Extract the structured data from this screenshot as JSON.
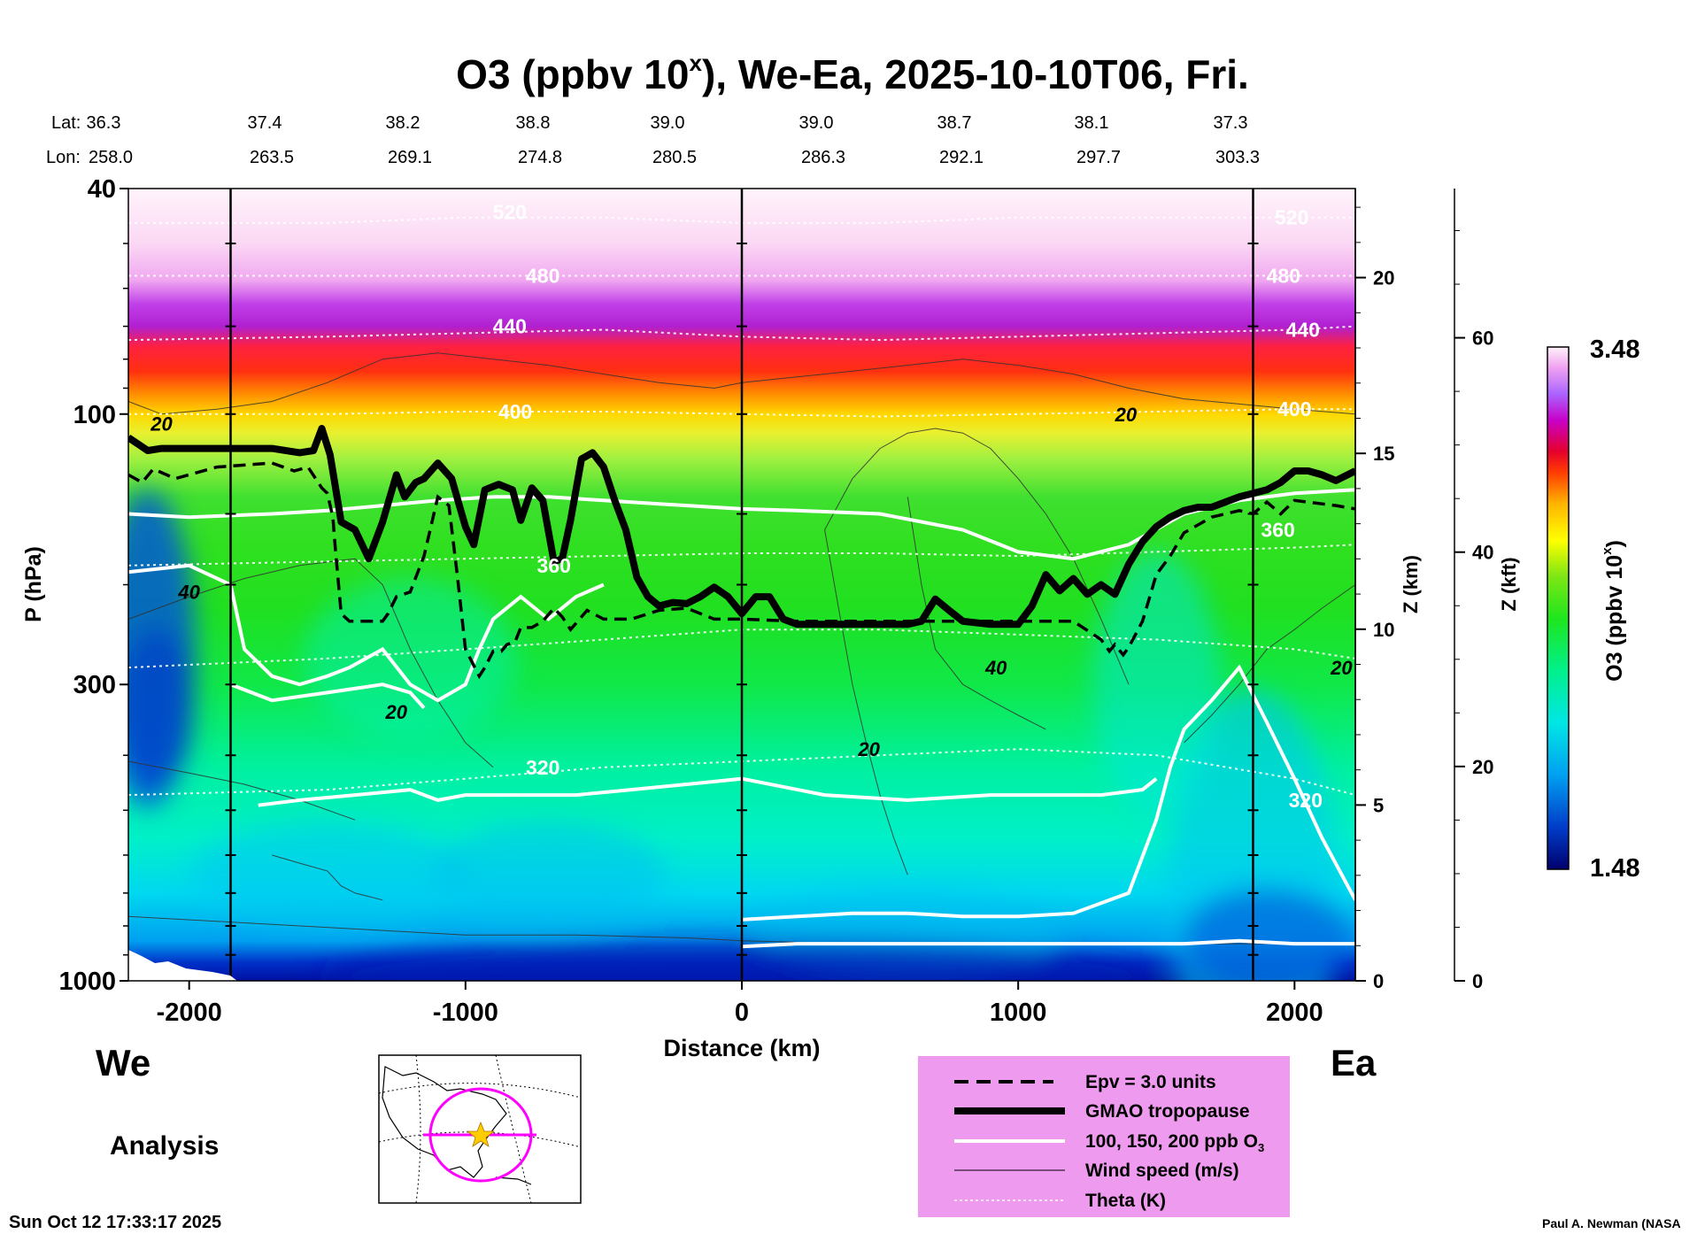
{
  "chart_data": {
    "type": "heatmap",
    "title_prefix": "O3 (ppbv 10",
    "title_sup": "x",
    "title_suffix": "), We-Ea, 2025-10-10T06, Fri.",
    "lat_label": "Lat:",
    "lon_label": "Lon:",
    "lat_values": [
      "36.3",
      "37.4",
      "38.2",
      "38.8",
      "39.0",
      "39.0",
      "38.7",
      "38.1",
      "37.3"
    ],
    "lon_values": [
      "258.0",
      "263.5",
      "269.1",
      "274.8",
      "280.5",
      "286.3",
      "292.1",
      "297.7",
      "303.3"
    ],
    "x_axis": {
      "label": "Distance (km)",
      "range": [
        -2220,
        2220
      ],
      "ticks": [
        -2000,
        -1000,
        0,
        1000,
        2000
      ],
      "tick_labels": [
        "-2000",
        "-1000",
        "0",
        "1000",
        "2000"
      ],
      "vertical_lines_km": [
        -1850,
        0,
        1850
      ]
    },
    "y_axis": {
      "label": "P (hPa)",
      "scale": "log",
      "range": [
        1000,
        40
      ],
      "ticks": [
        1000,
        300,
        100,
        40
      ],
      "tick_labels": [
        "1000",
        "300",
        "100",
        "40"
      ]
    },
    "z_km_axis": {
      "label": "Z (km)",
      "ticks": [
        0,
        5,
        10,
        15,
        20
      ],
      "tick_labels": [
        "0",
        "5",
        "10",
        "15",
        "20"
      ]
    },
    "z_kft_axis": {
      "label": "Z (kft)",
      "ticks": [
        0,
        20,
        40,
        60
      ],
      "tick_labels": [
        "0",
        "20",
        "40",
        "60"
      ]
    },
    "colorbar": {
      "label_prefix": "O3 (ppbv 10",
      "label_sup": "x",
      "label_suffix": ")",
      "min_label": "1.48",
      "max_label": "3.48",
      "min": 1.48,
      "max": 3.48
    },
    "theta_labels": [
      {
        "text": "520",
        "x_km": -840,
        "p_hpa": 44
      },
      {
        "text": "480",
        "x_km": -720,
        "p_hpa": 57
      },
      {
        "text": "440",
        "x_km": -840,
        "p_hpa": 70
      },
      {
        "text": "400",
        "x_km": -820,
        "p_hpa": 99
      },
      {
        "text": "360",
        "x_km": -680,
        "p_hpa": 185
      },
      {
        "text": "320",
        "x_km": -720,
        "p_hpa": 420
      },
      {
        "text": "520",
        "x_km": 1990,
        "p_hpa": 45
      },
      {
        "text": "480",
        "x_km": 1960,
        "p_hpa": 57
      },
      {
        "text": "440",
        "x_km": 2030,
        "p_hpa": 71
      },
      {
        "text": "400",
        "x_km": 2000,
        "p_hpa": 98
      },
      {
        "text": "360",
        "x_km": 1940,
        "p_hpa": 160
      },
      {
        "text": "320",
        "x_km": 2040,
        "p_hpa": 480
      }
    ],
    "wind_labels": [
      {
        "text": "20",
        "x_km": -2100,
        "p_hpa": 104
      },
      {
        "text": "40",
        "x_km": -2000,
        "p_hpa": 206
      },
      {
        "text": "20",
        "x_km": -1250,
        "p_hpa": 335
      },
      {
        "text": "20",
        "x_km": 1390,
        "p_hpa": 100
      },
      {
        "text": "40",
        "x_km": 920,
        "p_hpa": 280
      },
      {
        "text": "20",
        "x_km": 460,
        "p_hpa": 390
      },
      {
        "text": "20",
        "x_km": 2170,
        "p_hpa": 280
      }
    ],
    "tropopause": {
      "x_km": [
        -2220,
        -2150,
        -2100,
        -1900,
        -1700,
        -1600,
        -1550,
        -1520,
        -1490,
        -1450,
        -1400,
        -1350,
        -1300,
        -1250,
        -1220,
        -1180,
        -1150,
        -1100,
        -1050,
        -1000,
        -970,
        -930,
        -880,
        -830,
        -800,
        -760,
        -720,
        -680,
        -650,
        -620,
        -580,
        -540,
        -500,
        -460,
        -420,
        -380,
        -340,
        -300,
        -250,
        -200,
        -150,
        -100,
        -50,
        0,
        50,
        100,
        150,
        200,
        300,
        400,
        500,
        600,
        650,
        700,
        750,
        800,
        900,
        1000,
        1050,
        1100,
        1150,
        1200,
        1250,
        1300,
        1350,
        1400,
        1450,
        1500,
        1550,
        1600,
        1650,
        1700,
        1800,
        1900,
        1950,
        2000,
        2050,
        2100,
        2150,
        2220
      ],
      "p_hpa": [
        110,
        116,
        115,
        115,
        115,
        117,
        116,
        106,
        118,
        155,
        160,
        180,
        155,
        128,
        140,
        132,
        130,
        122,
        130,
        158,
        170,
        136,
        133,
        136,
        154,
        135,
        142,
        182,
        180,
        154,
        120,
        117,
        124,
        142,
        160,
        194,
        210,
        218,
        215,
        216,
        210,
        202,
        210,
        225,
        210,
        210,
        230,
        235,
        235,
        235,
        235,
        235,
        232,
        212,
        222,
        232,
        235,
        235,
        218,
        192,
        205,
        195,
        208,
        200,
        208,
        184,
        168,
        158,
        152,
        148,
        146,
        146,
        140,
        136,
        132,
        126,
        126,
        128,
        131,
        126
      ],
      "label": "GMAO tropopause"
    },
    "epv_3": {
      "x_km": [
        -2220,
        -2170,
        -2130,
        -2050,
        -1900,
        -1700,
        -1620,
        -1570,
        -1520,
        -1500,
        -1480,
        -1470,
        -1450,
        -1420,
        -1400,
        -1350,
        -1300,
        -1280,
        -1250,
        -1200,
        -1150,
        -1100,
        -1060,
        -1030,
        -1000,
        -950,
        -930,
        -900,
        -870,
        -850,
        -820,
        -800,
        -760,
        -720,
        -680,
        -650,
        -620,
        -560,
        -500,
        -400,
        -300,
        -200,
        -100,
        0,
        200,
        400,
        600,
        800,
        1000,
        1200,
        1300,
        1330,
        1350,
        1380,
        1400,
        1450,
        1500,
        1550,
        1600,
        1700,
        1800,
        1850,
        1900,
        1950,
        2000,
        2100,
        2150,
        2220
      ],
      "p_hpa": [
        128,
        132,
        125,
        130,
        124,
        122,
        126,
        124,
        135,
        138,
        152,
        175,
        225,
        232,
        232,
        232,
        232,
        225,
        210,
        206,
        178,
        140,
        145,
        192,
        260,
        290,
        280,
        262,
        262,
        255,
        252,
        238,
        238,
        232,
        220,
        228,
        240,
        222,
        230,
        230,
        222,
        220,
        230,
        230,
        232,
        232,
        232,
        232,
        232,
        232,
        250,
        262,
        255,
        266,
        258,
        232,
        192,
        178,
        162,
        152,
        148,
        150,
        143,
        150,
        142,
        144,
        145,
        147
      ],
      "label": "Epv = 3.0 units"
    },
    "theta_isolines": [
      {
        "theta": 320,
        "x_km": [
          -2220,
          -1500,
          -1000,
          -500,
          0,
          500,
          1000,
          1500,
          2000,
          2220
        ],
        "p_hpa": [
          470,
          460,
          440,
          420,
          410,
          400,
          390,
          400,
          440,
          470
        ]
      },
      {
        "theta": 340,
        "x_km": [
          -2220,
          -1500,
          -1000,
          -500,
          0,
          500,
          1000,
          1500,
          2000,
          2220
        ],
        "p_hpa": [
          280,
          270,
          260,
          250,
          240,
          240,
          245,
          250,
          260,
          270
        ]
      },
      {
        "theta": 360,
        "x_km": [
          -2220,
          -1500,
          -1000,
          -500,
          0,
          500,
          1000,
          1500,
          2000,
          2220
        ],
        "p_hpa": [
          185,
          182,
          180,
          178,
          176,
          176,
          178,
          175,
          172,
          170
        ]
      },
      {
        "theta": 400,
        "x_km": [
          -2220,
          -1500,
          -1000,
          -500,
          0,
          500,
          1000,
          1500,
          2000,
          2220
        ],
        "p_hpa": [
          100,
          100,
          99,
          99,
          100,
          101,
          100,
          99,
          98,
          98
        ]
      },
      {
        "theta": 440,
        "x_km": [
          -2220,
          -1500,
          -1000,
          -500,
          0,
          500,
          1000,
          1500,
          2000,
          2220
        ],
        "p_hpa": [
          74,
          73,
          72,
          71,
          73,
          74,
          73,
          72,
          71,
          70
        ]
      },
      {
        "theta": 480,
        "x_km": [
          -2220,
          -1500,
          -1000,
          -500,
          0,
          500,
          1000,
          1500,
          2000,
          2220
        ],
        "p_hpa": [
          57,
          57,
          57,
          57,
          57,
          57,
          57,
          57,
          57,
          57
        ]
      },
      {
        "theta": 520,
        "x_km": [
          -2220,
          -1500,
          -1000,
          -500,
          0,
          500,
          1000,
          1500,
          2000,
          2220
        ],
        "p_hpa": [
          46,
          46,
          45,
          45,
          46,
          46,
          45,
          45,
          45,
          45
        ]
      }
    ],
    "legend": [
      {
        "style": "dashed",
        "label": "Epv = 3.0 units"
      },
      {
        "style": "thick",
        "label": "GMAO tropopause"
      },
      {
        "style": "white",
        "label_prefix": "100, 150, 200 ppb O",
        "label_sub": "3"
      },
      {
        "style": "thin",
        "label": "Wind speed (m/s)"
      },
      {
        "style": "dotted",
        "label": "Theta (K)"
      }
    ],
    "colors": {
      "legend_background": "#ee9aee",
      "locator_circle": "#ff00ff",
      "locator_star": "#ffcc00"
    }
  },
  "labels": {
    "we": "We",
    "ea": "Ea",
    "analysis": "Analysis",
    "timestamp": "Sun Oct 12 17:33:17 2025",
    "credit": "Paul A. Newman (NASA"
  }
}
